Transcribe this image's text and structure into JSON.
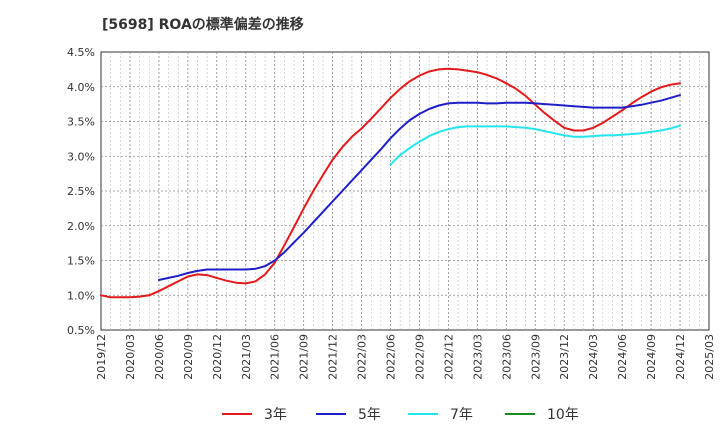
{
  "chart_data": {
    "type": "line",
    "title": "[5698]  ROAの標準偏差の推移",
    "xlabel": "",
    "ylabel": "",
    "x_ticks": [
      "2019/12",
      "2020/03",
      "2020/06",
      "2020/09",
      "2020/12",
      "2021/03",
      "2021/06",
      "2021/09",
      "2021/12",
      "2022/03",
      "2022/06",
      "2022/09",
      "2022/12",
      "2023/03",
      "2023/06",
      "2023/09",
      "2023/12",
      "2024/03",
      "2024/06",
      "2024/09",
      "2024/12",
      "2025/03"
    ],
    "y_ticks": [
      "0.5%",
      "1.0%",
      "1.5%",
      "2.0%",
      "2.5%",
      "3.0%",
      "3.5%",
      "4.0%",
      "4.5%"
    ],
    "ylim": [
      0.5,
      4.5
    ],
    "grid": true,
    "legend_position": "bottom",
    "series": [
      {
        "name": "3年",
        "color": "#e31a1c",
        "x": [
          "2019/12",
          "2020/01",
          "2020/02",
          "2020/03",
          "2020/04",
          "2020/05",
          "2020/06",
          "2020/07",
          "2020/08",
          "2020/09",
          "2020/10",
          "2020/11",
          "2020/12",
          "2021/01",
          "2021/02",
          "2021/03",
          "2021/04",
          "2021/05",
          "2021/06",
          "2021/07",
          "2021/08",
          "2021/09",
          "2021/10",
          "2021/11",
          "2021/12",
          "2022/01",
          "2022/02",
          "2022/03",
          "2022/04",
          "2022/05",
          "2022/06",
          "2022/07",
          "2022/08",
          "2022/09",
          "2022/10",
          "2022/11",
          "2022/12",
          "2023/01",
          "2023/02",
          "2023/03",
          "2023/04",
          "2023/05",
          "2023/06",
          "2023/07",
          "2023/08",
          "2023/09",
          "2023/10",
          "2023/11",
          "2023/12",
          "2024/01",
          "2024/02",
          "2024/03",
          "2024/04",
          "2024/05",
          "2024/06",
          "2024/07",
          "2024/08",
          "2024/09",
          "2024/10",
          "2024/11",
          "2024/12"
        ],
        "values": [
          1.0,
          0.97,
          0.97,
          0.97,
          0.98,
          1.0,
          1.06,
          1.13,
          1.2,
          1.27,
          1.3,
          1.29,
          1.25,
          1.21,
          1.18,
          1.17,
          1.2,
          1.3,
          1.47,
          1.72,
          1.98,
          2.25,
          2.5,
          2.73,
          2.95,
          3.13,
          3.28,
          3.4,
          3.54,
          3.69,
          3.84,
          3.97,
          4.08,
          4.16,
          4.22,
          4.25,
          4.26,
          4.25,
          4.23,
          4.21,
          4.17,
          4.12,
          4.05,
          3.97,
          3.87,
          3.74,
          3.62,
          3.51,
          3.41,
          3.37,
          3.37,
          3.41,
          3.48,
          3.57,
          3.66,
          3.76,
          3.85,
          3.93,
          3.99,
          4.03,
          4.05
        ]
      },
      {
        "name": "5年",
        "color": "#1f1fc8",
        "x": [
          "2020/06",
          "2020/07",
          "2020/08",
          "2020/09",
          "2020/10",
          "2020/11",
          "2020/12",
          "2021/01",
          "2021/02",
          "2021/03",
          "2021/04",
          "2021/05",
          "2021/06",
          "2021/07",
          "2021/08",
          "2021/09",
          "2021/10",
          "2021/11",
          "2021/12",
          "2022/01",
          "2022/02",
          "2022/03",
          "2022/04",
          "2022/05",
          "2022/06",
          "2022/07",
          "2022/08",
          "2022/09",
          "2022/10",
          "2022/11",
          "2022/12",
          "2023/01",
          "2023/02",
          "2023/03",
          "2023/04",
          "2023/05",
          "2023/06",
          "2023/07",
          "2023/08",
          "2023/09",
          "2023/10",
          "2023/11",
          "2023/12",
          "2024/01",
          "2024/02",
          "2024/03",
          "2024/04",
          "2024/05",
          "2024/06",
          "2024/07",
          "2024/08",
          "2024/09",
          "2024/10",
          "2024/11",
          "2024/12"
        ],
        "values": [
          1.22,
          1.25,
          1.28,
          1.32,
          1.35,
          1.37,
          1.37,
          1.37,
          1.37,
          1.37,
          1.38,
          1.42,
          1.5,
          1.62,
          1.76,
          1.9,
          2.05,
          2.2,
          2.35,
          2.5,
          2.65,
          2.8,
          2.95,
          3.1,
          3.26,
          3.4,
          3.52,
          3.61,
          3.68,
          3.73,
          3.76,
          3.77,
          3.77,
          3.77,
          3.76,
          3.76,
          3.77,
          3.77,
          3.77,
          3.76,
          3.75,
          3.74,
          3.73,
          3.72,
          3.71,
          3.7,
          3.7,
          3.7,
          3.7,
          3.72,
          3.74,
          3.77,
          3.8,
          3.84,
          3.88
        ]
      },
      {
        "name": "7年",
        "color": "#22e5ee",
        "x": [
          "2022/06",
          "2022/07",
          "2022/08",
          "2022/09",
          "2022/10",
          "2022/11",
          "2022/12",
          "2023/01",
          "2023/02",
          "2023/03",
          "2023/04",
          "2023/05",
          "2023/06",
          "2023/07",
          "2023/08",
          "2023/09",
          "2023/10",
          "2023/11",
          "2023/12",
          "2024/01",
          "2024/02",
          "2024/03",
          "2024/04",
          "2024/05",
          "2024/06",
          "2024/07",
          "2024/08",
          "2024/09",
          "2024/10",
          "2024/11",
          "2024/12"
        ],
        "values": [
          2.88,
          3.02,
          3.12,
          3.21,
          3.29,
          3.35,
          3.39,
          3.42,
          3.43,
          3.43,
          3.43,
          3.43,
          3.43,
          3.42,
          3.41,
          3.39,
          3.36,
          3.33,
          3.3,
          3.28,
          3.28,
          3.29,
          3.3,
          3.3,
          3.31,
          3.32,
          3.33,
          3.35,
          3.37,
          3.4,
          3.44
        ]
      },
      {
        "name": "10年",
        "color": "#1e8a1e",
        "x": [],
        "values": []
      }
    ]
  }
}
